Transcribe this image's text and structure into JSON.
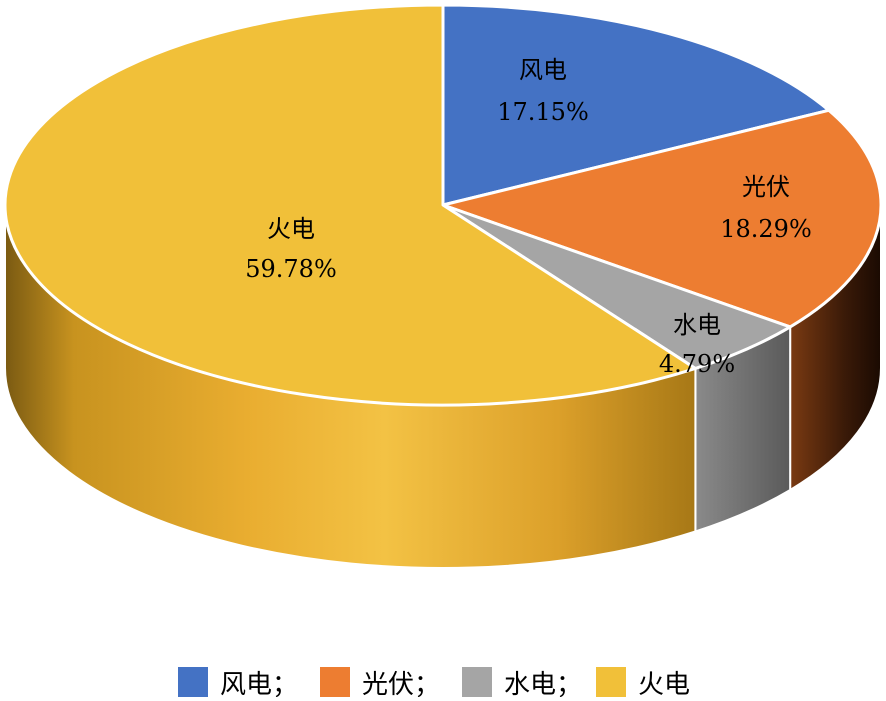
{
  "chart_data": {
    "type": "pie",
    "categories": [
      "风电",
      "光伏",
      "水电",
      "火电"
    ],
    "values": [
      17.15,
      18.29,
      4.79,
      59.78
    ],
    "data_labels": [
      "17.15%",
      "18.29%",
      "4.79%",
      "59.78%"
    ],
    "legend_labels": [
      "风电；",
      "光伏；",
      "水电；",
      "火电"
    ],
    "legend_position": "bottom",
    "style": "3d-pie",
    "colors": [
      "#4472C4",
      "#ED7D31",
      "#A5A5A5",
      "#F1C039"
    ]
  }
}
